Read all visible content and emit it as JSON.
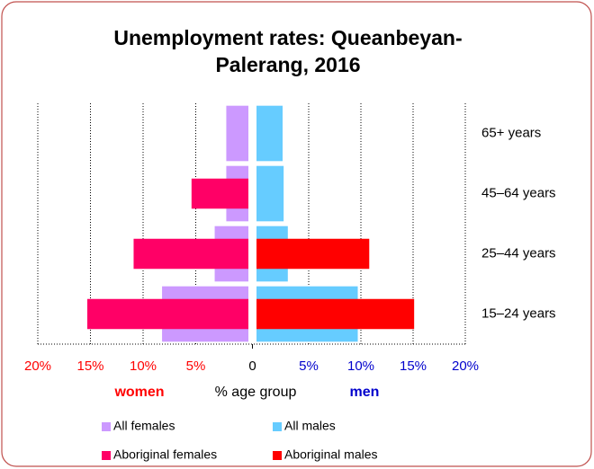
{
  "chart_data": {
    "type": "pyramid",
    "title": "Unemployment rates: Queanbeyan-Palerang, 2016",
    "title_lines": [
      "Unemployment rates: Queanbeyan-",
      "Palerang, 2016"
    ],
    "categories": [
      "65+ years",
      "45–64 years",
      "25–44 years",
      "15–24 years"
    ],
    "series": [
      {
        "name": "All females",
        "side": "women",
        "color": "#cc99ff",
        "values": [
          2.1,
          2.1,
          3.2,
          8.2
        ]
      },
      {
        "name": "Aboriginal females",
        "side": "women",
        "color": "#ff0066",
        "values": [
          null,
          5.4,
          10.9,
          15.3
        ]
      },
      {
        "name": "All males",
        "side": "men",
        "color": "#66ccff",
        "values": [
          2.5,
          2.6,
          3.0,
          9.7
        ]
      },
      {
        "name": "Aboriginal males",
        "side": "men",
        "color": "#ff0000",
        "values": [
          null,
          null,
          10.8,
          15.1
        ]
      }
    ],
    "xlim": [
      0,
      20
    ],
    "xticks_women": [
      {
        "value": 20,
        "label": "20%"
      },
      {
        "value": 15,
        "label": "15%"
      },
      {
        "value": 10,
        "label": "10%"
      },
      {
        "value": 5,
        "label": "5%"
      }
    ],
    "xtick_zero": 0,
    "xticks_men": [
      {
        "value": 5,
        "label": "5%"
      },
      {
        "value": 10,
        "label": "10%"
      },
      {
        "value": 15,
        "label": "15%"
      },
      {
        "value": 20,
        "label": "20%"
      }
    ],
    "women_label": "women",
    "xlabel": "% age group",
    "men_label": "men",
    "women_color": "#ff0000",
    "men_color": "#0000cc",
    "grid": true
  }
}
